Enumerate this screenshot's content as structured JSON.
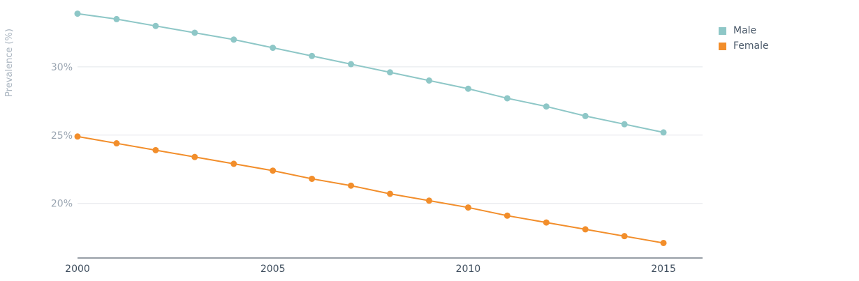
{
  "chart_data": {
    "type": "line",
    "title": "",
    "xlabel": "",
    "ylabel": "Prevalence (%)",
    "x": [
      2000,
      2001,
      2002,
      2003,
      2004,
      2005,
      2006,
      2007,
      2008,
      2009,
      2010,
      2011,
      2012,
      2013,
      2014,
      2015
    ],
    "x_ticks": [
      "2000",
      "2005",
      "2010",
      "2015"
    ],
    "y_ticks": [
      "20%",
      "25%",
      "30%"
    ],
    "xlim": [
      2000,
      2016
    ],
    "ylim": [
      16.0,
      34.9
    ],
    "grid": "horizontal",
    "legend_position": "top-right",
    "series": [
      {
        "name": "Male",
        "color": "#8ec7c7",
        "values": [
          33.9,
          33.5,
          33.0,
          32.5,
          32.0,
          31.4,
          30.8,
          30.2,
          29.6,
          29.0,
          28.4,
          27.7,
          27.1,
          26.4,
          25.8,
          25.2
        ]
      },
      {
        "name": "Female",
        "color": "#f28e2b",
        "values": [
          24.9,
          24.4,
          23.9,
          23.4,
          22.9,
          22.4,
          21.8,
          21.3,
          20.7,
          20.2,
          19.7,
          19.1,
          18.6,
          18.1,
          17.6,
          17.1
        ]
      }
    ]
  }
}
